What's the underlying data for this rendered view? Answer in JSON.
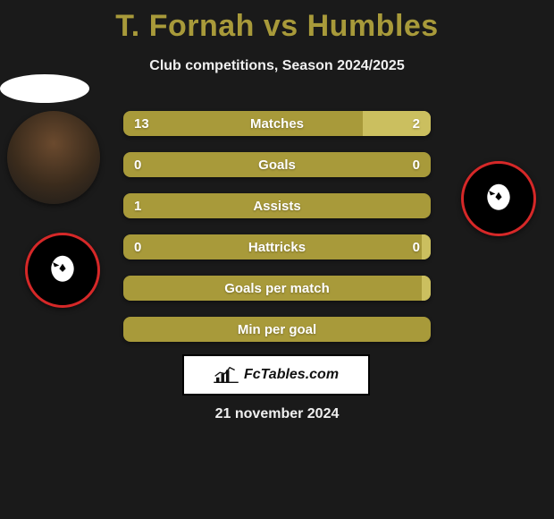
{
  "title": "T. Fornah vs Humbles",
  "subtitle": "Club competitions, Season 2024/2025",
  "colors": {
    "bar_left": "#a89a3a",
    "bar_right": "#cbbf5f",
    "background": "#1a1a1a",
    "title_color": "#a89a3a",
    "club_border": "#d62828",
    "club_bg": "#000000"
  },
  "font": {
    "title_size": 34,
    "subtitle_size": 16,
    "bar_label_size": 15,
    "date_size": 16
  },
  "bars": [
    {
      "label": "Matches",
      "left": "13",
      "right": "2",
      "left_pct": 78,
      "right_pct": 22
    },
    {
      "label": "Goals",
      "left": "0",
      "right": "0",
      "left_pct": 100,
      "right_pct": 0
    },
    {
      "label": "Assists",
      "left": "1",
      "right": "",
      "left_pct": 100,
      "right_pct": 0
    },
    {
      "label": "Hattricks",
      "left": "0",
      "right": "0",
      "left_pct": 97,
      "right_pct": 3
    },
    {
      "label": "Goals per match",
      "left": "",
      "right": "",
      "left_pct": 97,
      "right_pct": 3
    },
    {
      "label": "Min per goal",
      "left": "",
      "right": "",
      "left_pct": 100,
      "right_pct": 0
    }
  ],
  "watermark": "FcTables.com",
  "date": "21 november 2024"
}
